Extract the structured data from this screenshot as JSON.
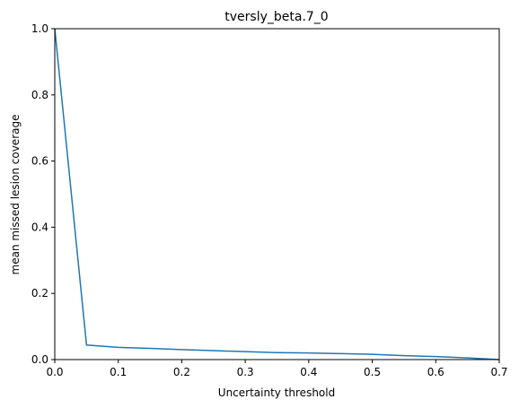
{
  "chart_data": {
    "type": "line",
    "title": "tversly_beta.7_0",
    "xlabel": "Uncertainty threshold",
    "ylabel": "mean missed lesion coverage",
    "xlim": [
      0,
      0.7
    ],
    "ylim": [
      0,
      1
    ],
    "xticks": [
      "0.0",
      "0.1",
      "0.2",
      "0.3",
      "0.4",
      "0.5",
      "0.6",
      "0.7"
    ],
    "yticks": [
      "0.0",
      "0.2",
      "0.4",
      "0.6",
      "0.8",
      "1.0"
    ],
    "grid": false,
    "series": [
      {
        "color": "#1f77b4",
        "x": [
          0.0,
          0.05,
          0.1,
          0.15,
          0.2,
          0.25,
          0.3,
          0.35,
          0.4,
          0.45,
          0.5,
          0.55,
          0.6,
          0.65,
          0.7
        ],
        "y": [
          1.0,
          0.044,
          0.037,
          0.034,
          0.03,
          0.027,
          0.024,
          0.021,
          0.02,
          0.018,
          0.016,
          0.012,
          0.009,
          0.005,
          0.0
        ]
      }
    ]
  }
}
